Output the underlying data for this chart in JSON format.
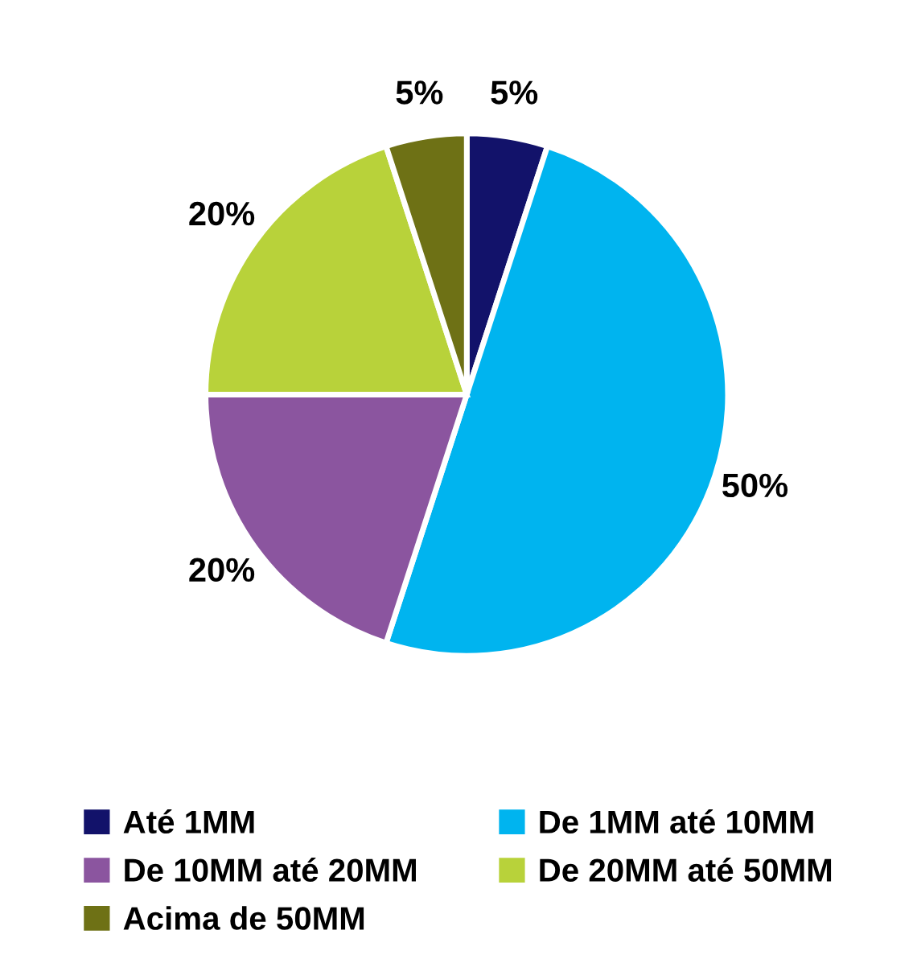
{
  "chart_data": {
    "type": "pie",
    "categories": [
      "Até 1MM",
      "De 1MM até 10MM",
      "De 10MM até 20MM",
      "De 20MM até 50MM",
      "Acima de 50MM"
    ],
    "values": [
      5,
      50,
      20,
      20,
      5
    ],
    "colors": [
      "#12126a",
      "#00b4ef",
      "#8b559f",
      "#b8d23a",
      "#6e7115"
    ],
    "value_labels": [
      "5%",
      "50%",
      "20%",
      "20%",
      "5%"
    ],
    "legend": "bottom"
  }
}
